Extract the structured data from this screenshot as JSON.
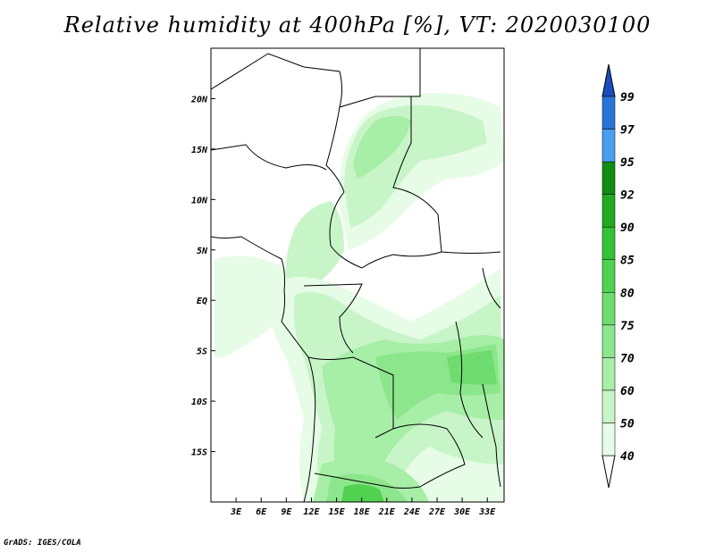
{
  "title": "Relative humidity at 400hPa [%], VT: 2020030100",
  "credit": "GrADS: IGES/COLA",
  "map": {
    "lon_range": [
      0,
      35
    ],
    "lat_range": [
      -20,
      25
    ],
    "lon_ticks": [
      "3E",
      "6E",
      "9E",
      "12E",
      "15E",
      "18E",
      "21E",
      "24E",
      "27E",
      "30E",
      "33E"
    ],
    "lon_tick_values": [
      3,
      6,
      9,
      12,
      15,
      18,
      21,
      24,
      27,
      30,
      33
    ],
    "lat_ticks": [
      "20N",
      "15N",
      "10N",
      "5N",
      "EQ",
      "5S",
      "10S",
      "15S"
    ],
    "lat_tick_values": [
      20,
      15,
      10,
      5,
      0,
      -5,
      -10,
      -15
    ],
    "coastline_color": "#000000",
    "field": "Relative humidity at 400hPa (%)"
  },
  "colorbar": {
    "labels": [
      "40",
      "50",
      "60",
      "70",
      "75",
      "80",
      "85",
      "90",
      "92",
      "95",
      "97",
      "99"
    ],
    "colors": [
      "#ffffff",
      "#e6fce6",
      "#c8f5c8",
      "#a7eea7",
      "#8ce68c",
      "#6edc6e",
      "#50d250",
      "#35c235",
      "#22aa22",
      "#128c12",
      "#4a9ef0",
      "#2a74d8",
      "#1a4ec0"
    ],
    "arrows": "both ends"
  }
}
